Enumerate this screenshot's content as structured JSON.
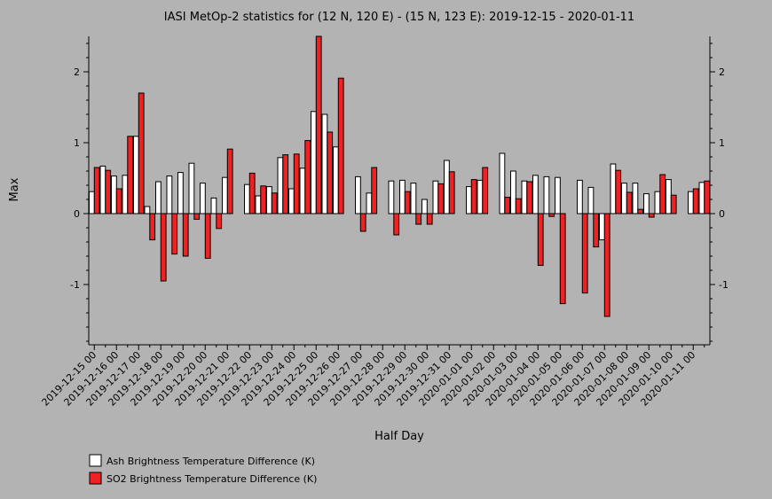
{
  "chart_data": {
    "type": "bar",
    "title": "IASI MetOp-2 statistics for (12 N, 120 E) - (15 N, 123 E): 2019-12-15 - 2020-01-11",
    "xlabel": "Half Day",
    "ylabel": "Max",
    "ylim": [
      -1.85,
      2.5
    ],
    "yticks": [
      -1,
      0,
      1,
      2
    ],
    "grid": false,
    "legend_position": "bottom-left",
    "x_tick_labels": [
      "2019-12-15 00",
      "2019-12-16 00",
      "2019-12-17 00",
      "2019-12-18 00",
      "2019-12-19 00",
      "2019-12-20 00",
      "2019-12-21 00",
      "2019-12-22 00",
      "2019-12-23 00",
      "2019-12-24 00",
      "2019-12-25 00",
      "2019-12-26 00",
      "2019-12-27 00",
      "2019-12-28 00",
      "2019-12-29 00",
      "2019-12-30 00",
      "2019-12-31 00",
      "2020-01-01 00",
      "2020-01-02 00",
      "2020-01-03 00",
      "2020-01-04 00",
      "2020-01-05 00",
      "2020-01-06 00",
      "2020-01-07 00",
      "2020-01-08 00",
      "2020-01-09 00",
      "2020-01-10 00",
      "2020-01-11 00"
    ],
    "series": [
      {
        "name": "Ash Brightness Temperature Difference (K)",
        "color": "#ffffff",
        "values": [
          0.31,
          0.67,
          0.53,
          0.54,
          1.09,
          0.1,
          0.45,
          0.53,
          0.58,
          0.71,
          0.43,
          0.22,
          0.51,
          null,
          0.41,
          0.25,
          0.38,
          0.79,
          0.35,
          0.64,
          1.44,
          1.4,
          0.94,
          null,
          0.52,
          0.29,
          null,
          0.46,
          0.47,
          0.43,
          0.2,
          0.46,
          0.75,
          null,
          0.38,
          0.47,
          null,
          0.85,
          0.6,
          0.46,
          0.54,
          0.52,
          0.51,
          null,
          0.47,
          0.37,
          -0.37,
          0.7,
          0.43,
          0.43,
          0.28,
          0.31,
          0.48,
          null,
          0.31,
          0.44
        ]
      },
      {
        "name": "SO2 Brightness Temperature Difference (K)",
        "color": "#ee2222",
        "values": [
          0.65,
          0.61,
          0.35,
          1.09,
          1.7,
          -0.37,
          -0.95,
          -0.57,
          -0.6,
          -0.08,
          -0.63,
          -0.21,
          0.91,
          null,
          0.57,
          0.39,
          0.29,
          0.83,
          0.84,
          1.03,
          2.5,
          1.15,
          1.91,
          null,
          -0.25,
          0.65,
          null,
          -0.3,
          0.31,
          -0.15,
          -0.15,
          0.42,
          0.59,
          null,
          0.48,
          0.65,
          null,
          0.23,
          0.21,
          0.45,
          -0.73,
          -0.04,
          -1.27,
          null,
          -1.12,
          -0.47,
          -1.45,
          0.61,
          0.3,
          0.06,
          -0.05,
          0.55,
          0.26,
          null,
          0.35,
          0.46
        ]
      }
    ]
  }
}
